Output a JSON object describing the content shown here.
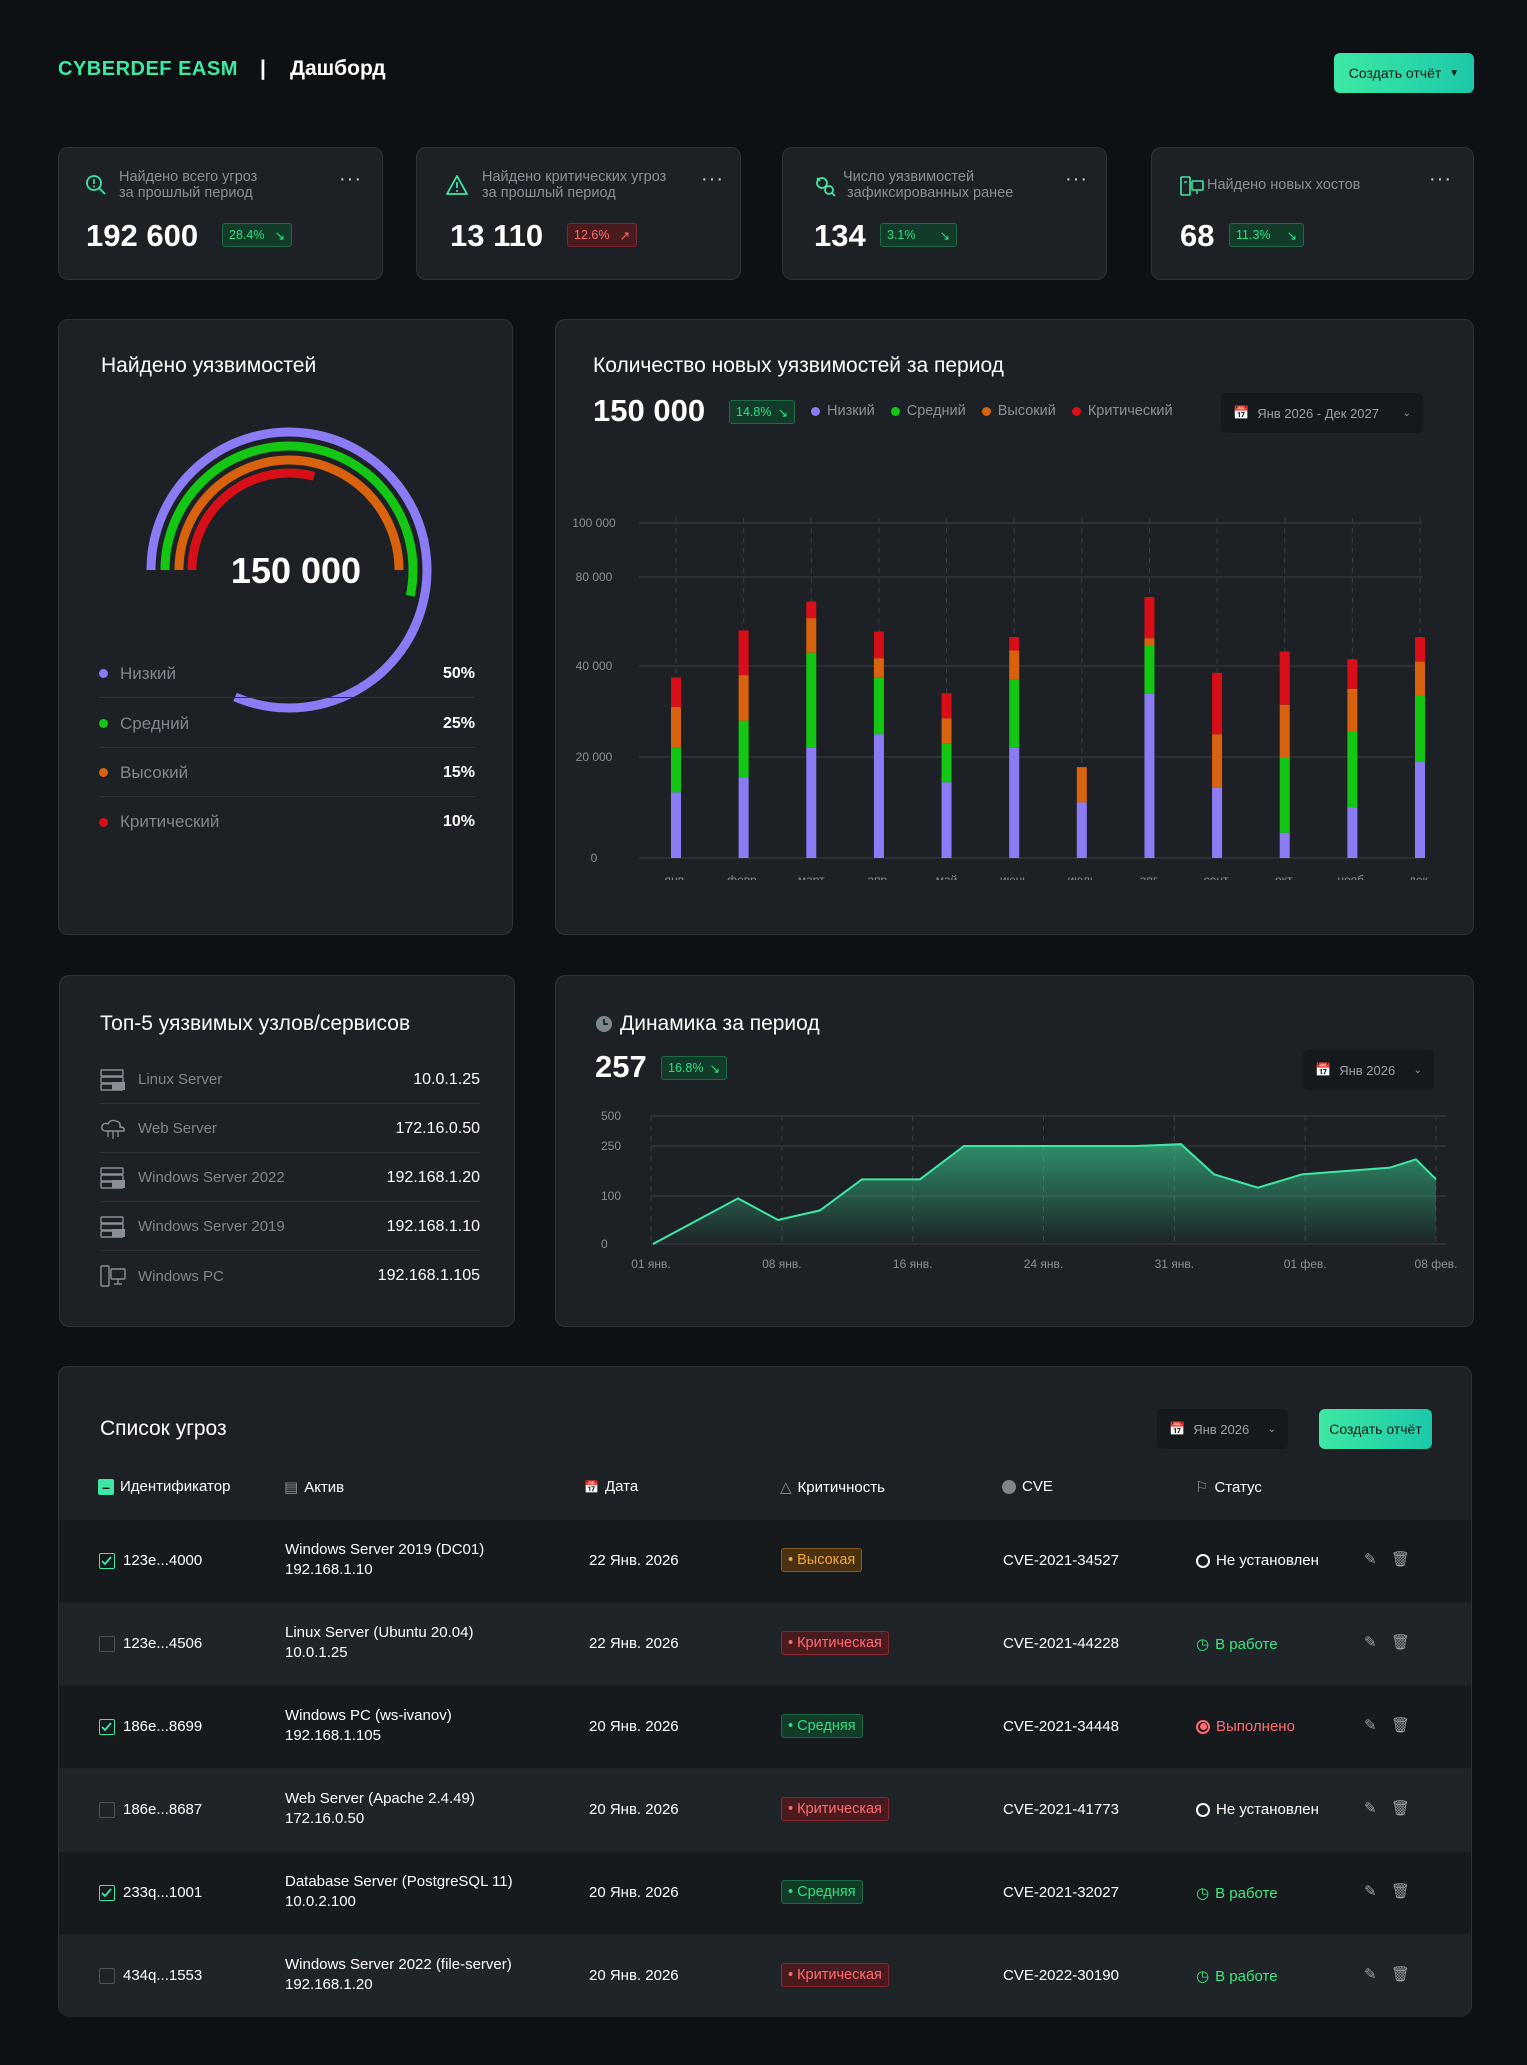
{
  "header": {
    "brand": "CYBERDEF EASM",
    "separator": "|",
    "title": "Дашборд",
    "report_button": "Создать отчёт"
  },
  "stats": [
    {
      "label1": "Найдено всего угроз",
      "label2": "за прошлый период",
      "value": "192 600",
      "badge": "28.4%",
      "trend": "up",
      "icon": "search-alert-icon"
    },
    {
      "label1": "Найдено критических угроз",
      "label2": "за прошлый период",
      "value": "13 110",
      "badge": "12.6%",
      "trend": "down",
      "icon": "warning-triangle-icon"
    },
    {
      "label1": "Число уязвимостей",
      "label2": "зафиксированных ранее",
      "value": "134",
      "badge": "3.1%",
      "trend": "up",
      "icon": "bug-icon"
    },
    {
      "label1": "Найдено новых хостов",
      "label2": "",
      "value": "68",
      "badge": "11.3%",
      "trend": "up",
      "icon": "hosts-icon"
    }
  ],
  "donut": {
    "title": "Найдено уязвимостей",
    "total": "150 000",
    "legend": [
      {
        "name": "Низкий",
        "value": "50%",
        "color": "#8b7cf6"
      },
      {
        "name": "Средний",
        "value": "25%",
        "color": "#15c715"
      },
      {
        "name": "Высокий",
        "value": "15%",
        "color": "#d8620d"
      },
      {
        "name": "Критический",
        "value": "10%",
        "color": "#d80f18"
      }
    ]
  },
  "bar_panel": {
    "title": "Количество новых уязвимостей за период",
    "total": "150 000",
    "badge": "14.8%",
    "range": "Янв 2026 - Дек 2027"
  },
  "line_panel": {
    "title": "Динамика за период",
    "total": "257",
    "badge": "16.8%",
    "range": "Янв 2026"
  },
  "hosts": {
    "title": "Топ-5 уязвимых узлов/сервисов",
    "items": [
      {
        "name": "Linux Server",
        "ip": "10.0.1.25",
        "icon": "linux-server-icon"
      },
      {
        "name": "Web Server",
        "ip": "172.16.0.50",
        "icon": "cloud-server-icon"
      },
      {
        "name": "Windows Server 2022",
        "ip": "192.168.1.20",
        "icon": "windows-server-icon"
      },
      {
        "name": "Windows Server 2019",
        "ip": "192.168.1.10",
        "icon": "windows-server-icon"
      },
      {
        "name": "Windows PC",
        "ip": "192.168.1.105",
        "icon": "pc-icon"
      }
    ]
  },
  "threats": {
    "title": "Список угроз",
    "range": "Янв 2026",
    "report_button": "Создать отчёт",
    "columns": {
      "id": "Идентификатор",
      "asset": "Актив",
      "date": "Дата",
      "severity": "Критичность",
      "cve": "CVE",
      "status": "Статус"
    },
    "rows": [
      {
        "checked": true,
        "id": "123e...4000",
        "asset": "Windows Server 2019 (DC01)",
        "ip": "192.168.1.10",
        "date": "22 Янв. 2026",
        "severity": "Высокая",
        "sev": "high",
        "cve": "CVE-2021-34527",
        "status": "Не установлен",
        "st": "none"
      },
      {
        "checked": false,
        "id": "123e...4506",
        "asset": "Linux Server (Ubuntu 20.04)",
        "ip": "10.0.1.25",
        "date": "22 Янв. 2026",
        "severity": "Критическая",
        "sev": "crit",
        "cve": "CVE-2021-44228",
        "status": "В работе",
        "st": "work"
      },
      {
        "checked": true,
        "id": "186e...8699",
        "asset": "Windows PC (ws-ivanov)",
        "ip": "192.168.1.105",
        "date": "20 Янв. 2026",
        "severity": "Средняя",
        "sev": "mid",
        "cve": "CVE-2021-34448",
        "status": "Выполнено",
        "st": "done"
      },
      {
        "checked": false,
        "id": "186e...8687",
        "asset": "Web Server (Apache 2.4.49)",
        "ip": "172.16.0.50",
        "date": "20 Янв. 2026",
        "severity": "Критическая",
        "sev": "crit",
        "cve": "CVE-2021-41773",
        "status": "Не установлен",
        "st": "none"
      },
      {
        "checked": true,
        "id": "233q...1001",
        "asset": "Database Server (PostgreSQL 11)",
        "ip": "10.0.2.100",
        "date": "20 Янв. 2026",
        "severity": "Средняя",
        "sev": "mid",
        "cve": "CVE-2021-32027",
        "status": "В работе",
        "st": "work"
      },
      {
        "checked": false,
        "id": "434q...1553",
        "asset": "Windows Server 2022 (file-server)",
        "ip": "192.168.1.20",
        "date": "20 Янв. 2026",
        "severity": "Критическая",
        "sev": "crit",
        "cve": "CVE-2022-30190",
        "status": "В работе",
        "st": "work"
      }
    ]
  },
  "chart_data": [
    {
      "type": "pie",
      "title": "Найдено уязвимостей",
      "categories": [
        "Низкий",
        "Средний",
        "Высокий",
        "Критический"
      ],
      "values": [
        50,
        25,
        15,
        10
      ]
    },
    {
      "type": "bar",
      "stacked": true,
      "title": "Количество новых уязвимостей за период",
      "categories": [
        "янв.",
        "февр.",
        "март",
        "апр.",
        "май",
        "июнь",
        "июль",
        "авг.",
        "сент.",
        "окт.",
        "нояб.",
        "дек."
      ],
      "series": [
        {
          "name": "Низкий",
          "color": "#8b7cf6",
          "values": [
            13000,
            16000,
            22000,
            25000,
            15000,
            22000,
            11000,
            34000,
            14000,
            5000,
            10000,
            19000
          ]
        },
        {
          "name": "Средний",
          "color": "#15c715",
          "values": [
            9000,
            12000,
            24000,
            12500,
            8000,
            15000,
            0,
            15000,
            0,
            15000,
            15500,
            14500
          ]
        },
        {
          "name": "Высокий",
          "color": "#d8620d",
          "values": [
            9000,
            10000,
            15500,
            6000,
            5500,
            10000,
            7000,
            3500,
            11000,
            11500,
            9500,
            8500
          ]
        },
        {
          "name": "Критический",
          "color": "#d80f18",
          "values": [
            6500,
            18000,
            7500,
            12000,
            5500,
            6000,
            0,
            18500,
            13500,
            15000,
            8000,
            11000
          ]
        }
      ],
      "yticks": [
        "0",
        "20 000",
        "40 000",
        "80 000",
        "100 000"
      ],
      "ylim": [
        0,
        100000
      ],
      "legend": "top",
      "grid": true
    },
    {
      "type": "area",
      "title": "Динамика за период",
      "x": [
        "01 янв.",
        "05 янв.",
        "07 янв.",
        "10 янв.",
        "12 янв.",
        "14 янв.",
        "16 янв.",
        "18 янв.",
        "24 янв.",
        "26 янв.",
        "29 янв.",
        "31 янв.",
        "01 фев.",
        "03 фев.",
        "05 фев.",
        "06 фев.",
        "08 фев."
      ],
      "values": [
        0,
        95,
        50,
        70,
        150,
        150,
        250,
        250,
        250,
        250,
        265,
        165,
        125,
        165,
        185,
        210,
        150
      ],
      "yticks": [
        "0",
        "100",
        "250",
        "500"
      ],
      "xticks": [
        "01 янв.",
        "08 янв.",
        "16 янв.",
        "24 янв.",
        "31 янв.",
        "01 фев.",
        "08 фев."
      ],
      "grid": true
    }
  ]
}
